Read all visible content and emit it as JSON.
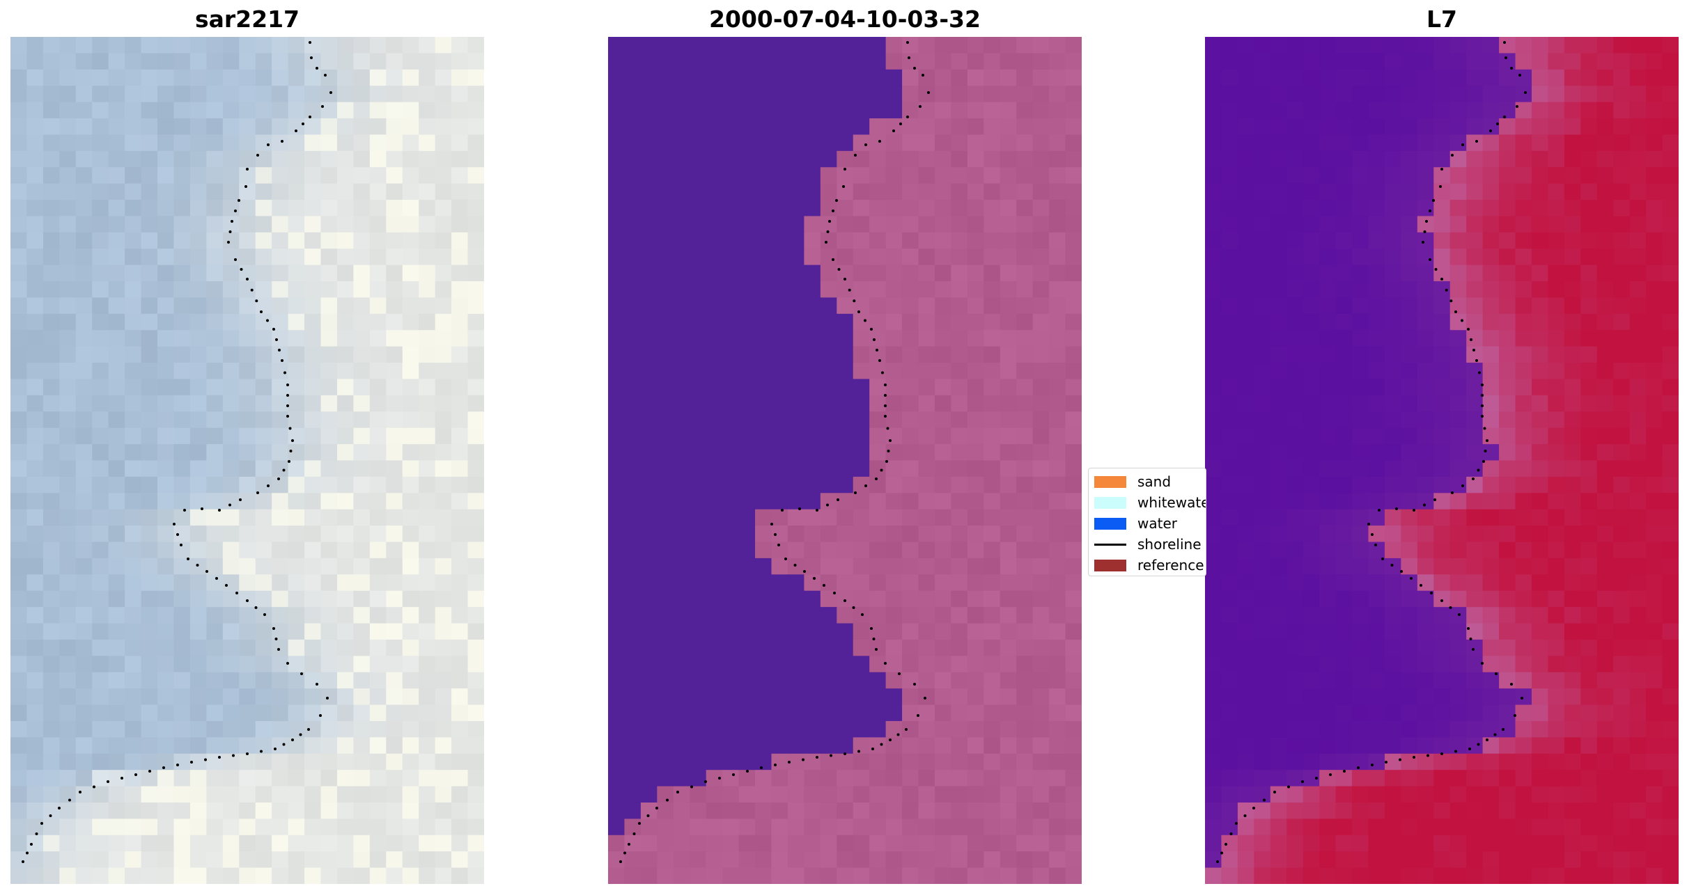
{
  "panels": [
    {
      "title": "sar2217"
    },
    {
      "title": "2000-07-04-10-03-32"
    },
    {
      "title": "L7"
    }
  ],
  "legend": {
    "items": [
      {
        "label": "sand",
        "color": "#f5873a",
        "kind": "patch"
      },
      {
        "label": "whitewater",
        "color": "#ccfdfd",
        "kind": "patch"
      },
      {
        "label": "water",
        "color": "#0b5cf5",
        "kind": "patch"
      },
      {
        "label": "shoreline",
        "color": "#000000",
        "kind": "line"
      },
      {
        "label": "reference",
        "color": "#9e3030",
        "kind": "patch"
      }
    ]
  },
  "colors": {
    "rgb_water": "#a9bfd6",
    "rgb_land": "#e6e8e6",
    "classified_water": "#532198",
    "classified_land": "#b25c90",
    "mndwi_low": "#5c10a0",
    "mndwi_high": "#c2123f",
    "shoreline": "#000000"
  }
}
